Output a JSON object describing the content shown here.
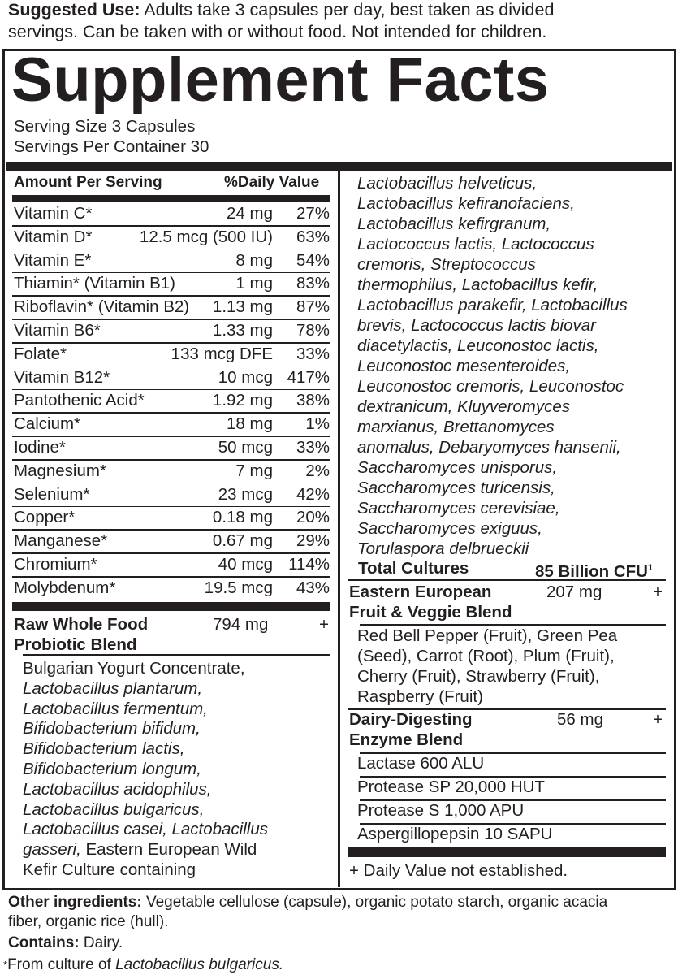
{
  "suggested_use": {
    "label": "Suggested Use:",
    "line1": " Adults take 3 capsules per day, best taken as divided",
    "line2": "servings. Can be taken with or without food. Not intended for children."
  },
  "title": "Supplement Facts",
  "serving_size": "Serving Size  3 Capsules",
  "servings_per_container": "Servings Per Container 30",
  "table_header": {
    "amount": "Amount Per Serving",
    "dv": "%Daily Value"
  },
  "nutrients": [
    {
      "name": "Vitamin C*",
      "amount": "24 mg",
      "dv": "27%"
    },
    {
      "name": "Vitamin D*",
      "amount": "12.5 mcg (500 IU)",
      "dv": "63%"
    },
    {
      "name": "Vitamin E*",
      "amount": "8 mg",
      "dv": "54%"
    },
    {
      "name": "Thiamin* (Vitamin B1)",
      "amount": "1 mg",
      "dv": "83%"
    },
    {
      "name": "Riboflavin* (Vitamin B2)",
      "amount": "1.13 mg",
      "dv": "87%"
    },
    {
      "name": "Vitamin B6*",
      "amount": "1.33 mg",
      "dv": "78%"
    },
    {
      "name": "Folate*",
      "amount": "133 mcg DFE",
      "dv": "33%"
    },
    {
      "name": "Vitamin B12*",
      "amount": "10 mcg",
      "dv": "417%"
    },
    {
      "name": "Pantothenic Acid*",
      "amount": "1.92 mg",
      "dv": "38%"
    },
    {
      "name": "Calcium*",
      "amount": "18 mg",
      "dv": "1%"
    },
    {
      "name": "Iodine*",
      "amount": "50 mcg",
      "dv": "33%"
    },
    {
      "name": "Magnesium*",
      "amount": "7 mg",
      "dv": "2%"
    },
    {
      "name": "Selenium*",
      "amount": "23 mcg",
      "dv": "42%"
    },
    {
      "name": "Copper*",
      "amount": "0.18 mg",
      "dv": "20%"
    },
    {
      "name": "Manganese*",
      "amount": "0.67 mg",
      "dv": "29%"
    },
    {
      "name": "Chromium*",
      "amount": "40 mcg",
      "dv": "114%"
    },
    {
      "name": "Molybdenum*",
      "amount": "19.5 mcg",
      "dv": "43%"
    }
  ],
  "probiotic_blend": {
    "name1": "Raw Whole Food",
    "name2": "Probiotic Blend",
    "amount": "794 mg",
    "dv": "+",
    "lines": [
      [
        [
          "Bulgarian Yogurt Concentrate,",
          false
        ]
      ],
      [
        [
          "Lactobacillus plantarum,",
          true
        ]
      ],
      [
        [
          "Lactobacillus fermentum,",
          true
        ]
      ],
      [
        [
          "Bifidobacterium bifidum,",
          true
        ]
      ],
      [
        [
          "Bifidobacterium lactis,",
          true
        ]
      ],
      [
        [
          "Bifidobacterium longum,",
          true
        ]
      ],
      [
        [
          "Lactobacillus acidophilus,",
          true
        ]
      ],
      [
        [
          "Lactobacillus bulgaricus,",
          true
        ]
      ],
      [
        [
          "Lactobacillus casei, Lactobacillus",
          true
        ]
      ],
      [
        [
          "gasseri,",
          true
        ],
        [
          " Eastern European Wild",
          false
        ]
      ],
      [
        [
          "Kefir Culture containing",
          false
        ]
      ]
    ]
  },
  "cultures_lines": [
    "Lactobacillus helveticus,",
    "Lactobacillus kefiranofaciens,",
    "Lactobacillus kefirgranum,",
    "Lactococcus lactis, Lactococcus",
    "cremoris, Streptococcus",
    "thermophilus, Lactobacillus kefir,",
    "Lactobacillus parakefir, Lactobacillus",
    "brevis, Lactococcus lactis biovar",
    "diacetylactis, Leuconostoc lactis,",
    "Leuconostoc mesenteroides,",
    "Leuconostoc cremoris, Leuconostoc",
    "dextranicum, Kluyveromyces",
    "marxianus, Brettanomyces",
    "anomalus, Debaryomyces hansenii,",
    "Saccharomyces unisporus,",
    "Saccharomyces turicensis,",
    "Saccharomyces cerevisiae,",
    "Saccharomyces exiguus,",
    "Torulaspora delbrueckii"
  ],
  "total_cultures": {
    "label": "Total Cultures",
    "value": "85 Billion CFU",
    "sup": "1"
  },
  "fruit_blend": {
    "name1": "Eastern European",
    "name2": "Fruit & Veggie Blend",
    "amount": "207 mg",
    "dv": "+",
    "lines": [
      "Red Bell Pepper (Fruit), Green Pea",
      "(Seed), Carrot (Root), Plum (Fruit),",
      "Cherry (Fruit), Strawberry (Fruit),",
      "Raspberry (Fruit)"
    ]
  },
  "enzyme_blend": {
    "name1": "Dairy-Digesting",
    "name2": "Enzyme Blend",
    "amount": "56 mg",
    "dv": "+",
    "items": [
      "Lactase 600 ALU",
      "Protease SP 20,000 HUT",
      "Protease S 1,000 APU",
      "Aspergillopepsin 10 SAPU"
    ]
  },
  "dv_note": "+ Daily Value not established.",
  "other_ingredients": {
    "label": "Other ingredients:",
    "line1": " Vegetable cellulose (capsule), organic potato starch, organic acacia",
    "line2": "fiber, organic rice (hull)."
  },
  "contains": {
    "label": "Contains:",
    "value": " Dairy."
  },
  "footnote": {
    "mark": "¹",
    "prefix": "From culture of ",
    "italic": "Lactobacillus bulgaricus."
  }
}
